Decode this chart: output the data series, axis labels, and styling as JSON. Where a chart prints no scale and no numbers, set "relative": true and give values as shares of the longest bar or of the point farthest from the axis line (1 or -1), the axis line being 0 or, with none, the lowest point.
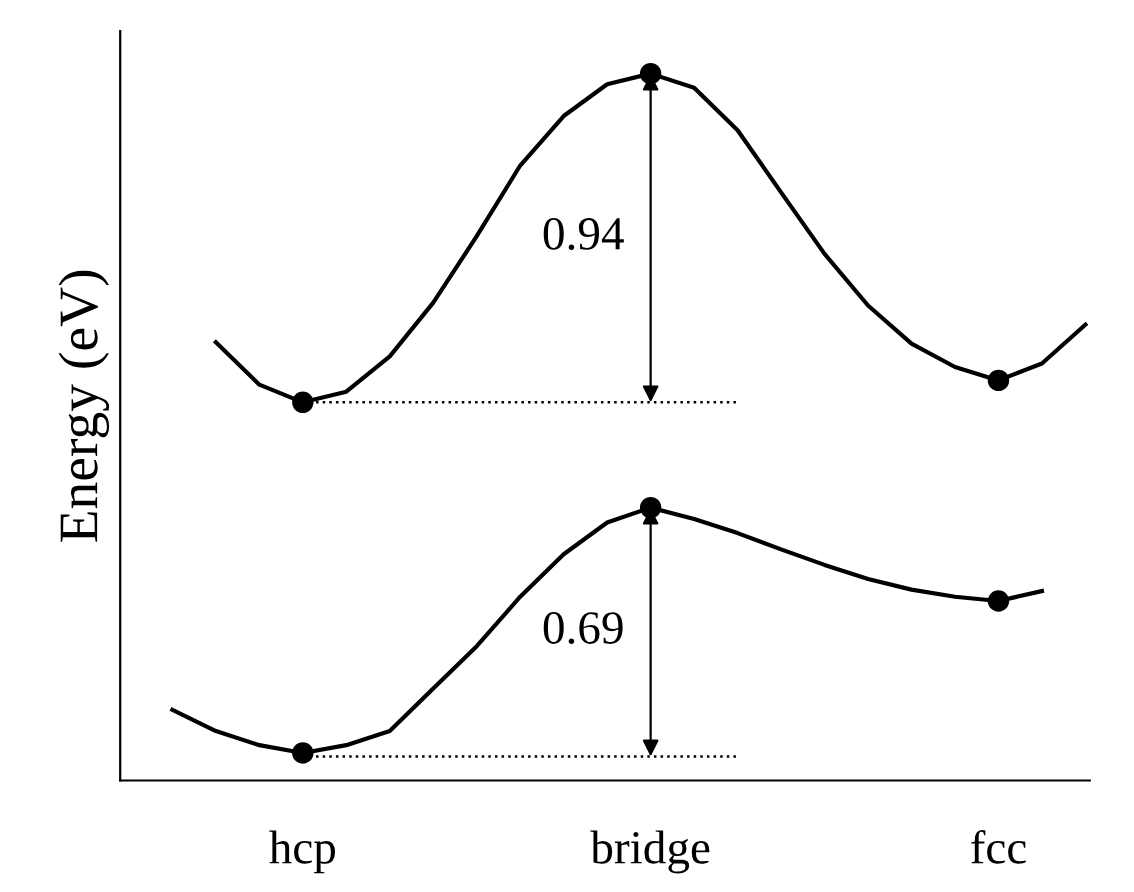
{
  "chart_data": {
    "type": "line",
    "relative": true,
    "ylabel": "Energy (eV)",
    "categories": [
      null,
      null,
      null,
      null,
      "hcp",
      null,
      null,
      null,
      null,
      null,
      null,
      null,
      "bridge",
      null,
      null,
      null,
      null,
      null,
      null,
      null,
      "fcc",
      null,
      null
    ],
    "series": [
      {
        "color": "#000000",
        "values": [
          null,
          null,
          0.62,
          0.56,
          0.535,
          0.55,
          0.6,
          0.676,
          0.77,
          0.87,
          0.94,
          0.985,
          1,
          0.98,
          0.92,
          0.832,
          0.745,
          0.672,
          0.618,
          0.585,
          0.566,
          0.59,
          0.645
        ]
      },
      {
        "color": "#000000",
        "values": [
          null,
          0.1,
          0.07,
          0.05,
          0.039,
          0.05,
          0.07,
          0.13,
          0.19,
          0.26,
          0.32,
          0.365,
          0.386,
          0.37,
          0.35,
          0.327,
          0.305,
          0.285,
          0.27,
          0.26,
          0.254,
          0.268,
          null
        ]
      },
      {
        "type": "scatter",
        "color": "#000000",
        "marker": "circle",
        "values": [
          null,
          null,
          null,
          null,
          0.535,
          null,
          null,
          null,
          null,
          null,
          null,
          null,
          1,
          null,
          null,
          null,
          null,
          null,
          null,
          null,
          0.566,
          null,
          null
        ]
      },
      {
        "type": "scatter",
        "color": "#000000",
        "marker": "circle",
        "values": [
          null,
          null,
          null,
          null,
          0.039,
          null,
          null,
          null,
          null,
          null,
          null,
          null,
          0.386,
          null,
          null,
          null,
          null,
          null,
          null,
          null,
          0.254,
          null,
          null
        ]
      },
      {
        "color": "#000000",
        "line_style": "dotted",
        "values": [
          null,
          null,
          null,
          null,
          0.535,
          0.535,
          0.535,
          0.535,
          0.535,
          0.535,
          0.535,
          0.535,
          0.535,
          0.535,
          0.535,
          null,
          null,
          null,
          null,
          null,
          null,
          null,
          null
        ]
      },
      {
        "color": "#000000",
        "line_style": "dotted",
        "values": [
          null,
          null,
          null,
          null,
          0.034,
          0.034,
          0.034,
          0.034,
          0.034,
          0.034,
          0.034,
          0.034,
          0.034,
          0.034,
          0.034,
          null,
          null,
          null,
          null,
          null,
          null,
          null,
          null
        ]
      }
    ],
    "annotations": [
      "0.94",
      "0.69"
    ]
  }
}
